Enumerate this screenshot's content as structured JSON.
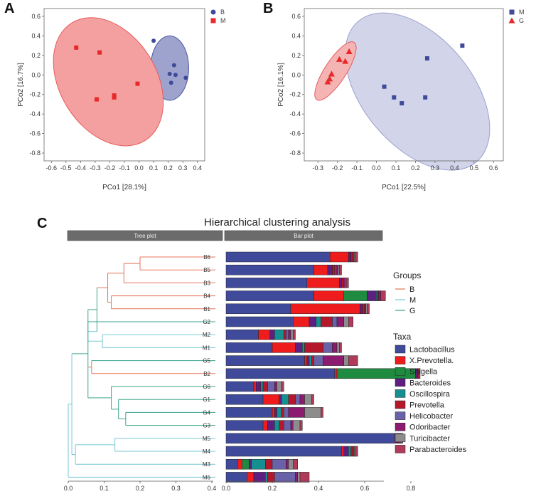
{
  "panels": {
    "a": "A",
    "b": "B",
    "c": "C"
  },
  "colors": {
    "B_group": "#3f4b9a",
    "M_group": "#e8282a",
    "G_group": "#2e9b7b",
    "tree_B": "#e8735a",
    "tree_M": "#76c8d3",
    "tree_G": "#3aa68c"
  },
  "chart_data": [
    {
      "type": "scatter",
      "panel": "A",
      "xlabel": "PCo1 [28.1%]",
      "ylabel": "PCo2 [16.7%]",
      "xlim": [
        -0.65,
        0.45
      ],
      "ylim": [
        -0.88,
        0.68
      ],
      "xticks": [
        -0.6,
        -0.5,
        -0.4,
        -0.3,
        -0.2,
        -0.1,
        0.0,
        0.1,
        0.2,
        0.3,
        0.4
      ],
      "xtick_labels": [
        "-0.6",
        "-0.5",
        "-0.4",
        "-0.3",
        "-0.2",
        "-0.1",
        "0.0",
        "0.1",
        "0.2",
        "0.3",
        "0.4"
      ],
      "yticks": [
        0.6,
        0.4,
        0.2,
        0.0,
        -0.2,
        -0.4,
        -0.6,
        -0.8
      ],
      "ytick_labels": [
        "0.6",
        "0.4",
        "0.2",
        "0.0",
        "-0.2",
        "-0.4",
        "-0.6",
        "-0.8"
      ],
      "legend_position": "top-right",
      "series": [
        {
          "name": "B",
          "marker": "circle",
          "color": "#3f4b9a",
          "ellipse": {
            "cx": 0.21,
            "cy": 0.07,
            "rx": 0.13,
            "ry": 0.33,
            "angle_deg": 0,
            "fill": "#9da3cc",
            "stroke": "#4a56a0"
          },
          "points": [
            [
              0.1,
              0.35
            ],
            [
              0.24,
              0.1
            ],
            [
              0.21,
              0.01
            ],
            [
              0.25,
              0.0
            ],
            [
              0.32,
              -0.03
            ],
            [
              0.22,
              -0.08
            ]
          ]
        },
        {
          "name": "M",
          "marker": "square",
          "color": "#e8282a",
          "ellipse": {
            "cx": -0.21,
            "cy": -0.07,
            "rx": 0.33,
            "ry": 0.71,
            "angle_deg": -32,
            "fill": "#f4a0a0",
            "stroke": "#e85a5a"
          },
          "points": [
            [
              -0.43,
              0.28
            ],
            [
              -0.27,
              0.23
            ],
            [
              -0.17,
              -0.21
            ],
            [
              -0.17,
              -0.23
            ],
            [
              -0.29,
              -0.25
            ],
            [
              -0.01,
              -0.09
            ]
          ]
        }
      ]
    },
    {
      "type": "scatter",
      "panel": "B",
      "xlabel": "PCo1 [22.5%]",
      "ylabel": "PCo2 [16.1%]",
      "xlim": [
        -0.37,
        0.65
      ],
      "ylim": [
        -0.88,
        0.68
      ],
      "xticks": [
        -0.3,
        -0.2,
        -0.1,
        0.0,
        0.1,
        0.2,
        0.3,
        0.4,
        0.5,
        0.6
      ],
      "xtick_labels": [
        "-0.3",
        "-0.2",
        "-0.1",
        "0.0",
        "0.1",
        "0.2",
        "0.3",
        "0.4",
        "0.5",
        "0.6"
      ],
      "yticks": [
        0.6,
        0.4,
        0.2,
        0.0,
        -0.2,
        -0.4,
        -0.6,
        -0.8
      ],
      "ytick_labels": [
        "0.6",
        "0.4",
        "0.2",
        "0.0",
        "-0.2",
        "-0.4",
        "-0.6",
        "-0.8"
      ],
      "legend_position": "top-right",
      "series": [
        {
          "name": "M",
          "marker": "square",
          "color": "#3f4b9a",
          "ellipse": {
            "cx": 0.21,
            "cy": -0.17,
            "rx": 0.47,
            "ry": 0.56,
            "angle_deg": 50,
            "fill": "#d2d5ea",
            "stroke": "#9aa0cc"
          },
          "points": [
            [
              0.44,
              0.3
            ],
            [
              0.26,
              0.17
            ],
            [
              0.04,
              -0.12
            ],
            [
              0.09,
              -0.23
            ],
            [
              0.13,
              -0.29
            ],
            [
              0.25,
              -0.23
            ]
          ]
        },
        {
          "name": "G",
          "marker": "triangle",
          "color": "#e8282a",
          "ellipse": {
            "cx": -0.21,
            "cy": 0.04,
            "rx": 0.055,
            "ry": 0.35,
            "angle_deg": 33,
            "fill": "#f4b4b4",
            "stroke": "#e85a5a"
          },
          "points": [
            [
              -0.14,
              0.24
            ],
            [
              -0.19,
              0.16
            ],
            [
              -0.16,
              0.14
            ],
            [
              -0.23,
              0.01
            ],
            [
              -0.24,
              -0.04
            ],
            [
              -0.25,
              -0.07
            ]
          ]
        }
      ]
    },
    {
      "type": "bar",
      "panel": "C",
      "title": "Hierarchical clustering analysis",
      "strip_labels": [
        "Tree plot",
        "Bar plot"
      ],
      "tree_axis_ticks": [
        "0.0",
        "0.1",
        "0.2",
        "0.3",
        "0.4"
      ],
      "tree_axis_values": [
        0.0,
        0.1,
        0.2,
        0.3,
        0.4
      ],
      "bar_axis_ticks": [
        "0.0",
        "0.2",
        "0.4",
        "0.6",
        "0.8"
      ],
      "bar_axis_values": [
        0.0,
        0.2,
        0.4,
        0.6,
        0.8
      ],
      "groups_title": "Groups",
      "groups": [
        {
          "name": "B",
          "color": "#e8735a"
        },
        {
          "name": "M",
          "color": "#76c8d3"
        },
        {
          "name": "G",
          "color": "#3aa68c"
        }
      ],
      "taxa_title": "Taxa",
      "taxa": [
        {
          "name": "Lactobacillus",
          "color": "#3f4b9a"
        },
        {
          "name": "X.Prevotella.",
          "color": "#ee1c1c"
        },
        {
          "name": "Shigella",
          "color": "#1e8b40"
        },
        {
          "name": "Bacteroides",
          "color": "#5e1f80"
        },
        {
          "name": "Oscillospira",
          "color": "#159090"
        },
        {
          "name": "Prevotella",
          "color": "#b5182a"
        },
        {
          "name": "Helicobacter",
          "color": "#6a62a8"
        },
        {
          "name": "Odoribacter",
          "color": "#8c1a6e"
        },
        {
          "name": "Turicibacter",
          "color": "#8c8c8c"
        },
        {
          "name": "Parabacteroides",
          "color": "#b03a5a"
        }
      ],
      "samples": [
        {
          "name": "B6",
          "group": "B",
          "values": [
            0.45,
            0.08,
            0,
            0.01,
            0,
            0.01,
            0,
            0.005,
            0.005,
            0.01
          ]
        },
        {
          "name": "B5",
          "group": "B",
          "values": [
            0.38,
            0.06,
            0,
            0.02,
            0,
            0.01,
            0.005,
            0.01,
            0.005,
            0.01
          ]
        },
        {
          "name": "B3",
          "group": "B",
          "values": [
            0.35,
            0.14,
            0,
            0.01,
            0,
            0.01,
            0,
            0.005,
            0.005,
            0.01
          ]
        },
        {
          "name": "B4",
          "group": "B",
          "values": [
            0.38,
            0.13,
            0.1,
            0.04,
            0.005,
            0.005,
            0,
            0.01,
            0,
            0.02
          ]
        },
        {
          "name": "B1",
          "group": "B",
          "values": [
            0.28,
            0.3,
            0,
            0.01,
            0,
            0.01,
            0,
            0.005,
            0.005,
            0.01
          ]
        },
        {
          "name": "G2",
          "group": "G",
          "values": [
            0.29,
            0.07,
            0,
            0.03,
            0.02,
            0.05,
            0.02,
            0.03,
            0.02,
            0.02
          ]
        },
        {
          "name": "M2",
          "group": "M",
          "values": [
            0.14,
            0.05,
            0,
            0.02,
            0.04,
            0.01,
            0.01,
            0.01,
            0.01,
            0.01
          ]
        },
        {
          "name": "M1",
          "group": "M",
          "values": [
            0.2,
            0.1,
            0,
            0.03,
            0.01,
            0.08,
            0.04,
            0.02,
            0.01,
            0.01
          ]
        },
        {
          "name": "G5",
          "group": "G",
          "values": [
            0.34,
            0.01,
            0,
            0.01,
            0.01,
            0.01,
            0.04,
            0.09,
            0.02,
            0.04
          ]
        },
        {
          "name": "B2",
          "group": "B",
          "values": [
            0.47,
            0.01,
            0.34,
            0.01,
            0,
            0.005,
            0,
            0,
            0,
            0.005
          ]
        },
        {
          "name": "G6",
          "group": "G",
          "values": [
            0.12,
            0.01,
            0,
            0.02,
            0.01,
            0.02,
            0.03,
            0.01,
            0.02,
            0.01
          ]
        },
        {
          "name": "G1",
          "group": "G",
          "values": [
            0.16,
            0.07,
            0,
            0.01,
            0.03,
            0.03,
            0.02,
            0.02,
            0.03,
            0.01
          ]
        },
        {
          "name": "G4",
          "group": "G",
          "values": [
            0.2,
            0.01,
            0,
            0.01,
            0.02,
            0.01,
            0.02,
            0.07,
            0.07,
            0.01
          ]
        },
        {
          "name": "G3",
          "group": "G",
          "values": [
            0.16,
            0.02,
            0,
            0.03,
            0.02,
            0.02,
            0.03,
            0.01,
            0.03,
            0.01
          ]
        },
        {
          "name": "M5",
          "group": "M",
          "values": [
            0.73,
            0.005,
            0,
            0.01,
            0,
            0.005,
            0,
            0.005,
            0.005,
            0.005
          ]
        },
        {
          "name": "M4",
          "group": "M",
          "values": [
            0.5,
            0.01,
            0,
            0.02,
            0.01,
            0.01,
            0,
            0.005,
            0.005,
            0.01
          ]
        },
        {
          "name": "M3",
          "group": "M",
          "values": [
            0.05,
            0.02,
            0.03,
            0.01,
            0.06,
            0.03,
            0.06,
            0.01,
            0.02,
            0.02
          ]
        },
        {
          "name": "M6",
          "group": "M",
          "values": [
            0.09,
            0.03,
            0,
            0.05,
            0.01,
            0.03,
            0.09,
            0.01,
            0.01,
            0.04
          ]
        }
      ]
    }
  ]
}
